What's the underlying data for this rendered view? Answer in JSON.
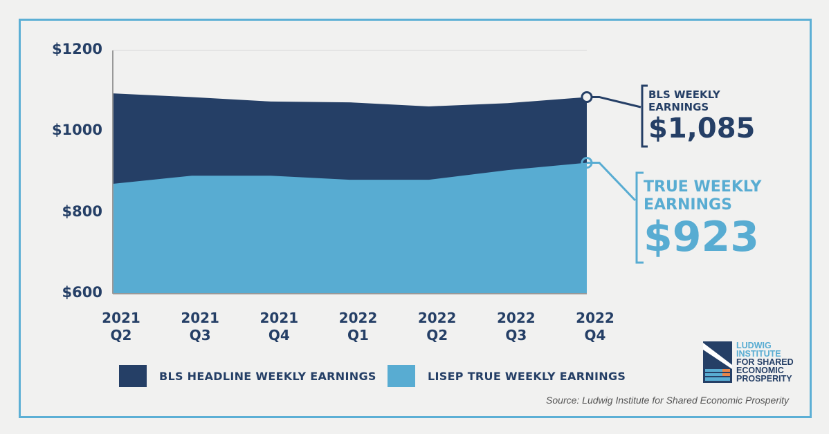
{
  "chart_data": {
    "type": "area",
    "categories": [
      "2021 Q2",
      "2021 Q3",
      "2021 Q4",
      "2022 Q1",
      "2022 Q2",
      "2022 Q3",
      "2022 Q4"
    ],
    "category_lines": [
      [
        "2021",
        "Q2"
      ],
      [
        "2021",
        "Q3"
      ],
      [
        "2021",
        "Q4"
      ],
      [
        "2022",
        "Q1"
      ],
      [
        "2022",
        "Q2"
      ],
      [
        "2022",
        "Q3"
      ],
      [
        "2022",
        "Q4"
      ]
    ],
    "series": [
      {
        "name": "BLS HEADLINE WEEKLY EARNINGS",
        "color": "#253f66",
        "values": [
          1094,
          1085,
          1074,
          1072,
          1062,
          1070,
          1085
        ]
      },
      {
        "name": "LISEP TRUE WEEKLY EARNINGS",
        "color": "#58acd2",
        "values": [
          871,
          891,
          891,
          881,
          881,
          905,
          923
        ]
      }
    ],
    "ylim": [
      600,
      1200
    ],
    "yticks": [
      "$600",
      "$800",
      "$1000",
      "$1200"
    ],
    "ytick_values": [
      600,
      800,
      1000,
      1200
    ],
    "legend_placement": "bottom",
    "grid": false,
    "annotations": {
      "bls": {
        "label_line1": "BLS WEEKLY",
        "label_line2": "EARNINGS",
        "value": "$1,085"
      },
      "true": {
        "label_line1": "TRUE WEEKLY",
        "label_line2": "EARNINGS",
        "value": "$923"
      }
    }
  },
  "source": "Source: Ludwig Institute for Shared Economic Prosperity",
  "logo": {
    "lines": [
      "LUDWIG",
      "INSTITUTE",
      "FOR SHARED",
      "ECONOMIC",
      "PROSPERITY"
    ]
  },
  "colors": {
    "frame": "#5cafd5",
    "navy": "#253f66",
    "light_blue": "#58acd2",
    "orange": "#e8864a"
  }
}
